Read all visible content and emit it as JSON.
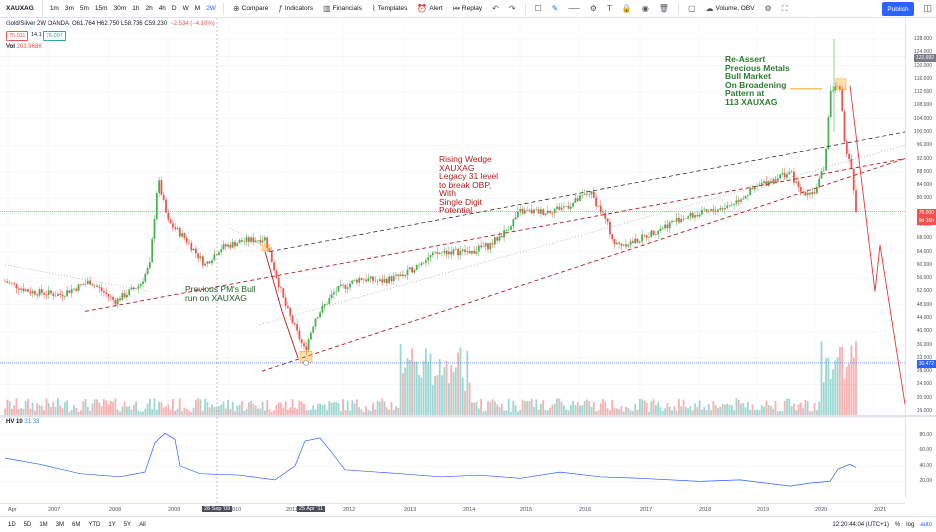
{
  "toolbar": {
    "symbol": "XAUXAG",
    "timeframes": [
      "1m",
      "3m",
      "5m",
      "15m",
      "30m",
      "1h",
      "2h",
      "4h",
      "D",
      "W",
      "M",
      "2W"
    ],
    "active_timeframe": "2W",
    "compare_label": "Compare",
    "indicators_label": "Indicators",
    "financials_label": "Financials",
    "templates_label": "Templates",
    "alert_label": "Alert",
    "replay_label": "Replay",
    "volume_label": "Volume, OBV",
    "publish_label": "Publish"
  },
  "legend": {
    "title": "Gold/Silver  2W  OANDA",
    "ohlc": "O61.764 H62.750 L58.736 C59.230",
    "change": "−2.534 (−4.10%)",
    "bid": "75.911",
    "spread": "14.1",
    "ask": "76.097",
    "vol_label": "Vol",
    "vol_value": "203.968K",
    "hv_label": "HV 10",
    "hv_value": "31.33"
  },
  "price_axis": {
    "ticks": [
      "128.000",
      "124.000",
      "120.000",
      "116.000",
      "112.000",
      "108.000",
      "104.000",
      "100.000",
      "96.000",
      "92.000",
      "88.000",
      "84.000",
      "80.000",
      "76.000",
      "72.000",
      "68.000",
      "64.000",
      "60.000",
      "56.000",
      "52.000",
      "48.000",
      "44.000",
      "40.000",
      "36.000",
      "32.000",
      "28.000",
      "24.000",
      "20.000",
      "16.000"
    ],
    "last_price": "76.000",
    "last_time": "9d 16h",
    "high_price": "122.692",
    "low_price": "30.472"
  },
  "hv_axis": {
    "ticks": [
      "80.00",
      "60.00",
      "40.00",
      "20.00"
    ]
  },
  "time_axis": {
    "labels": [
      "Apr",
      "2007",
      "2008",
      "2009",
      "2010",
      "2011",
      "2012",
      "2013",
      "2014",
      "2015",
      "2016",
      "2017",
      "2018",
      "2019",
      "2020",
      "2021"
    ],
    "highlight_1": "28 Sep '09",
    "highlight_2": "25 Apr '11"
  },
  "annotations": {
    "reassert": [
      "Re-Assert",
      "Precious Metals",
      "Bull Market",
      "On Broadening",
      "Pattern at",
      "113 XAUXAG"
    ],
    "wedge": [
      "Rising Wedge",
      "XAUXAG",
      "Legacy 31 level",
      "to break OBP,",
      "With",
      "Single Digit",
      "Potential"
    ],
    "previous": [
      "Previous PM's Bull",
      "run on XAUXAG"
    ]
  },
  "bottom": {
    "ranges": [
      "1D",
      "5D",
      "1M",
      "3M",
      "6M",
      "YTD",
      "1Y",
      "5Y",
      "All"
    ],
    "clock": "12:20:44:04 (UTC+1)",
    "pct": "%",
    "log": "log",
    "auto": "auto"
  },
  "colors": {
    "up": "#4caf50",
    "down": "#ef5350",
    "accent": "#2962ff"
  }
}
